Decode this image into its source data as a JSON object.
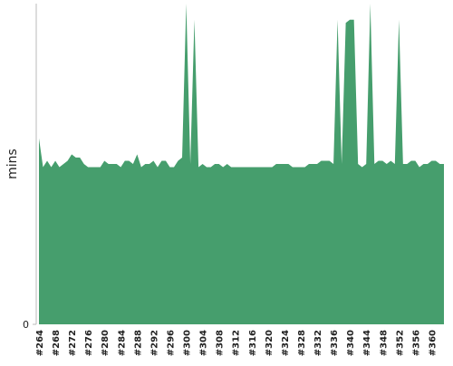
{
  "chart_data": {
    "type": "area",
    "y_label": "mins",
    "color": "#469e6d",
    "categories": [
      "#264",
      null,
      null,
      null,
      "#268",
      null,
      null,
      null,
      "#272",
      null,
      null,
      null,
      "#276",
      null,
      null,
      null,
      "#280",
      null,
      null,
      null,
      "#284",
      null,
      null,
      null,
      "#288",
      null,
      null,
      null,
      "#292",
      null,
      null,
      null,
      "#296",
      null,
      null,
      null,
      "#300",
      null,
      null,
      null,
      "#304",
      null,
      null,
      null,
      "#308",
      null,
      null,
      null,
      "#312",
      null,
      null,
      null,
      "#316",
      null,
      null,
      null,
      "#320",
      null,
      null,
      null,
      "#324",
      null,
      null,
      null,
      "#328",
      null,
      null,
      null,
      "#332",
      null,
      null,
      null,
      "#336",
      null,
      null,
      null,
      "#340",
      null,
      null,
      null,
      "#344",
      null,
      null,
      null,
      "#348",
      null,
      null,
      null,
      "#352",
      null,
      null,
      null,
      "#356",
      null,
      null,
      null,
      "#360",
      null,
      null,
      null
    ],
    "values": [
      5.8,
      4.9,
      5.1,
      4.9,
      5.1,
      4.9,
      5.0,
      5.1,
      5.3,
      5.2,
      5.2,
      5.0,
      4.9,
      4.9,
      4.9,
      4.9,
      5.1,
      5.0,
      5.0,
      5.0,
      4.9,
      5.1,
      5.1,
      5.0,
      5.3,
      4.9,
      5.0,
      5.0,
      5.1,
      4.9,
      5.1,
      5.1,
      4.9,
      4.9,
      5.1,
      5.2,
      10.0,
      5.0,
      9.5,
      4.9,
      5.0,
      4.9,
      4.9,
      5.0,
      5.0,
      4.9,
      5.0,
      4.9,
      4.9,
      4.9,
      4.9,
      4.9,
      4.9,
      4.9,
      4.9,
      4.9,
      4.9,
      4.9,
      5.0,
      5.0,
      5.0,
      5.0,
      4.9,
      4.9,
      4.9,
      4.9,
      5.0,
      5.0,
      5.0,
      5.1,
      5.1,
      5.1,
      5.0,
      9.5,
      5.0,
      9.4,
      9.5,
      9.5,
      5.0,
      4.9,
      5.0,
      10.0,
      5.0,
      5.1,
      5.1,
      5.0,
      5.1,
      5.0,
      9.5,
      5.0,
      5.0,
      5.1,
      5.1,
      4.9,
      5.0,
      5.0,
      5.1,
      5.1,
      5.0,
      5.0
    ],
    "ylim": [
      0,
      10
    ],
    "yticks": [
      0
    ]
  }
}
